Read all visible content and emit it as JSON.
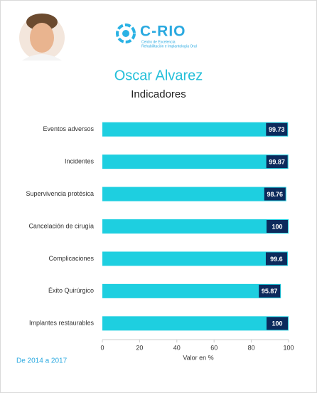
{
  "header": {
    "logo": {
      "name": "C-RIO",
      "lines": [
        "Centro de Excelencia",
        "Rehabilitación e Implantología Oral"
      ]
    }
  },
  "chart_data": {
    "type": "bar",
    "orientation": "horizontal",
    "title": "Oscar Alvarez",
    "subtitle": "Indicadores",
    "categories": [
      "Eventos adversos",
      "Incidentes",
      "Supervivencia protésica",
      "Cancelación de cirugía",
      "Complicaciones",
      "Éxito Quirúrgico",
      "Implantes restaurables"
    ],
    "values": [
      99.73,
      99.87,
      98.76,
      100,
      99.6,
      95.87,
      100
    ],
    "color": "#1ecfe0",
    "label_color": "#0c2a5c",
    "xlim": [
      0,
      100
    ],
    "xticks": [
      0,
      20,
      40,
      60,
      80,
      100
    ],
    "xlabel": "Valor en %"
  },
  "footer": {
    "period": "De 2014 a 2017"
  }
}
